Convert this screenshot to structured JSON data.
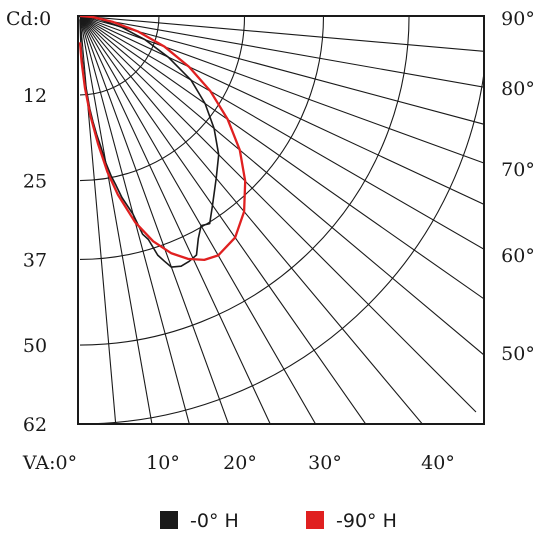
{
  "chart_data": {
    "type": "polar-candela",
    "origin_label": "Cd:0",
    "candela_ticks": [
      "12",
      "25",
      "37",
      "50",
      "62"
    ],
    "candela_values": [
      12,
      25,
      37,
      50,
      62
    ],
    "candela_max": 62,
    "vertical_angle_labels": [
      {
        "label": "VA:0°",
        "angle": 0
      },
      {
        "label": "10°",
        "angle": 10
      },
      {
        "label": "20°",
        "angle": 20
      },
      {
        "label": "30°",
        "angle": 30
      },
      {
        "label": "40°",
        "angle": 40
      },
      {
        "label": "50°",
        "angle": 50
      },
      {
        "label": "60°",
        "angle": 60
      },
      {
        "label": "70°",
        "angle": 70
      },
      {
        "label": "80°",
        "angle": 80
      },
      {
        "label": "90°",
        "angle": 90
      }
    ],
    "ray_angles": [
      5,
      10,
      15,
      20,
      25,
      30,
      35,
      40,
      45,
      50,
      55,
      60,
      65,
      70,
      75,
      80,
      85
    ],
    "series": [
      {
        "name": "-0° H",
        "color": "#1a1a1a",
        "points": [
          {
            "angle": 0,
            "cd": 0.5
          },
          {
            "angle": 2,
            "cd": 4.5
          },
          {
            "angle": 3,
            "cd": 6.5
          },
          {
            "angle": 4,
            "cd": 9.8
          },
          {
            "angle": 5,
            "cd": 11.3
          },
          {
            "angle": 6,
            "cd": 14.2
          },
          {
            "angle": 7,
            "cd": 16.2
          },
          {
            "angle": 8,
            "cd": 18.2
          },
          {
            "angle": 9,
            "cd": 20.0
          },
          {
            "angle": 10,
            "cd": 22.7
          },
          {
            "angle": 11,
            "cd": 24.7
          },
          {
            "angle": 12,
            "cd": 26.3
          },
          {
            "angle": 13,
            "cd": 28.3
          },
          {
            "angle": 14,
            "cd": 29.7
          },
          {
            "angle": 15,
            "cd": 31.2
          },
          {
            "angle": 16,
            "cd": 34.5
          },
          {
            "angle": 17,
            "cd": 35.5
          },
          {
            "angle": 18,
            "cd": 38.2
          },
          {
            "angle": 19,
            "cd": 39.4
          },
          {
            "angle": 20,
            "cd": 40.6
          },
          {
            "angle": 22,
            "cd": 41.0
          },
          {
            "angle": 24,
            "cd": 40.8
          },
          {
            "angle": 26,
            "cd": 40.4
          },
          {
            "angle": 28,
            "cd": 38.3
          },
          {
            "angle": 30,
            "cd": 36.8
          },
          {
            "angle": 32,
            "cd": 37.2
          },
          {
            "angle": 35,
            "cd": 35.1
          },
          {
            "angle": 40,
            "cd": 32.2
          },
          {
            "angle": 45,
            "cd": 29.8
          },
          {
            "angle": 50,
            "cd": 26.6
          },
          {
            "angle": 55,
            "cd": 23.2
          },
          {
            "angle": 60,
            "cd": 19.5
          },
          {
            "angle": 65,
            "cd": 14.8
          },
          {
            "angle": 70,
            "cd": 10.5
          },
          {
            "angle": 75,
            "cd": 6.5
          },
          {
            "angle": 80,
            "cd": 3.2
          },
          {
            "angle": 85,
            "cd": 1.0
          },
          {
            "angle": 90,
            "cd": 0
          }
        ]
      },
      {
        "name": "-90° H",
        "color": "#e02020",
        "points": [
          {
            "angle": 0,
            "cd": 4.0
          },
          {
            "angle": 2,
            "cd": 7.0
          },
          {
            "angle": 4,
            "cd": 11.0
          },
          {
            "angle": 6,
            "cd": 15.3
          },
          {
            "angle": 8,
            "cd": 19.6
          },
          {
            "angle": 10,
            "cd": 24.1
          },
          {
            "angle": 12,
            "cd": 27.8
          },
          {
            "angle": 15,
            "cd": 32.5
          },
          {
            "angle": 18,
            "cd": 36.0
          },
          {
            "angle": 21,
            "cd": 38.6
          },
          {
            "angle": 24,
            "cd": 40.4
          },
          {
            "angle": 27,
            "cd": 41.6
          },
          {
            "angle": 30,
            "cd": 42.0
          },
          {
            "angle": 35,
            "cd": 41.1
          },
          {
            "angle": 40,
            "cd": 38.8
          },
          {
            "angle": 45,
            "cd": 35.5
          },
          {
            "angle": 50,
            "cd": 31.7
          },
          {
            "angle": 55,
            "cd": 27.4
          },
          {
            "angle": 60,
            "cd": 22.9
          },
          {
            "angle": 65,
            "cd": 18.3
          },
          {
            "angle": 70,
            "cd": 13.7
          },
          {
            "angle": 75,
            "cd": 9.2
          },
          {
            "angle": 80,
            "cd": 5.0
          },
          {
            "angle": 85,
            "cd": 2.0
          },
          {
            "angle": 90,
            "cd": 0
          }
        ]
      }
    ],
    "legend": [
      {
        "label": "-0° H",
        "color": "#1a1a1a"
      },
      {
        "label": "-90° H",
        "color": "#e02020"
      }
    ],
    "legend_position": "bottom-center",
    "grid": true
  }
}
